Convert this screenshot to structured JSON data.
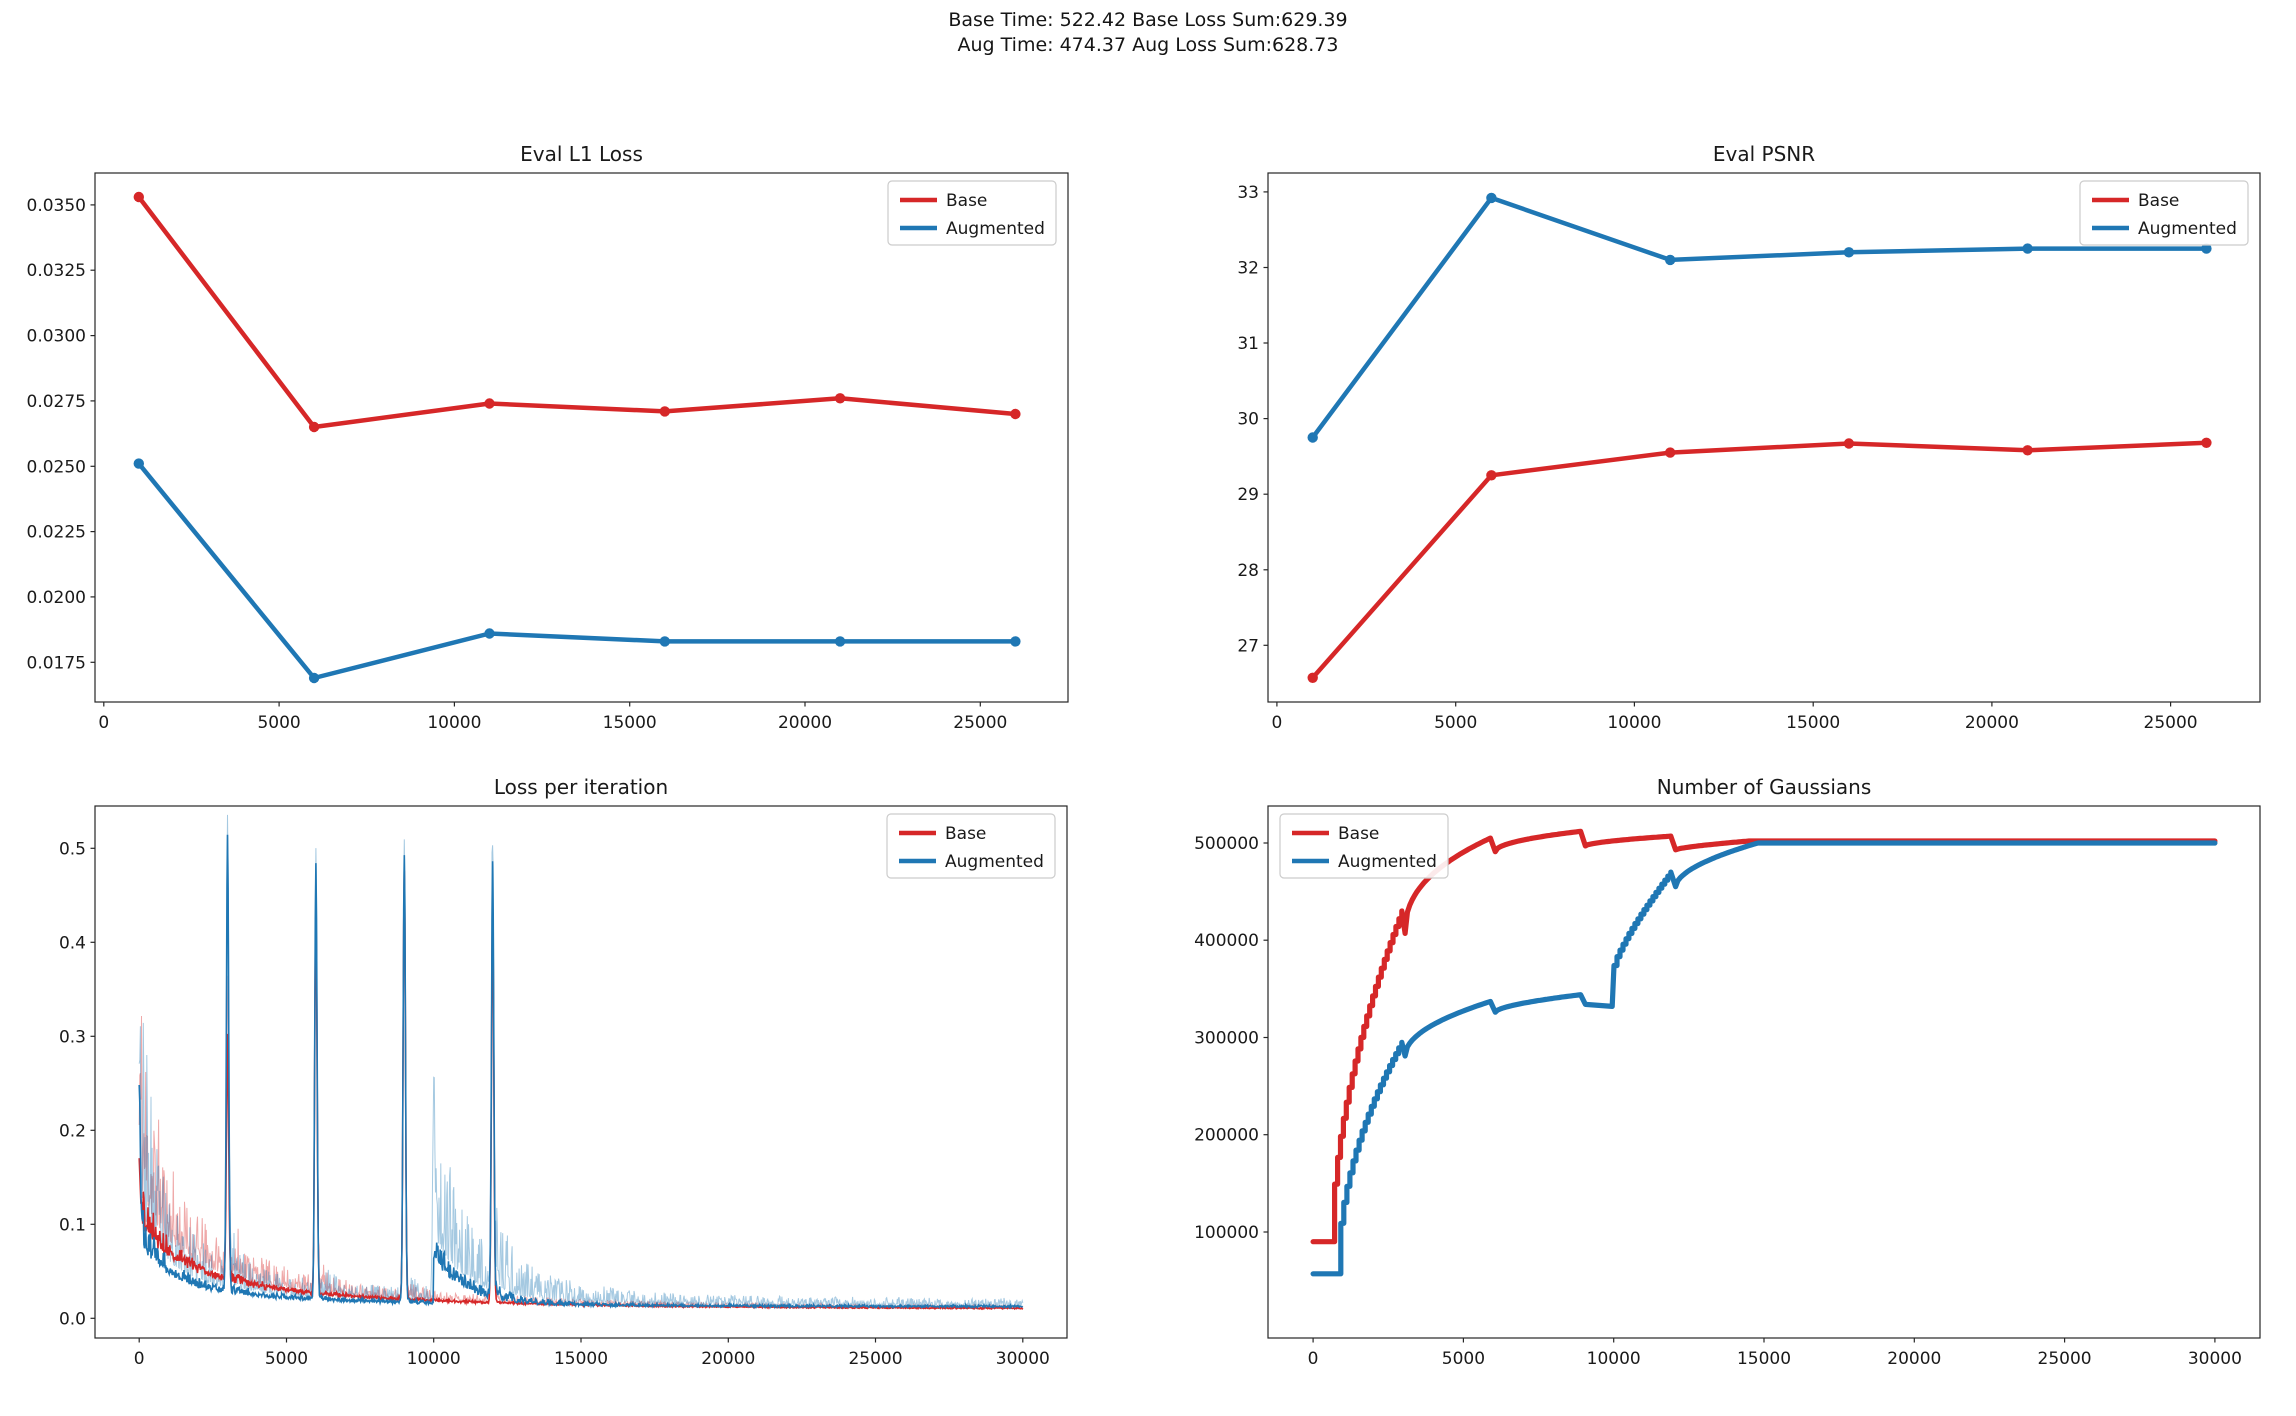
{
  "suptitle": {
    "line1": "Base Time: 522.42 Base Loss Sum:629.39",
    "line2": "Aug Time: 474.37 Aug Loss Sum:628.73"
  },
  "colors": {
    "base": "#d62728",
    "augmented": "#1f77b4",
    "base_light": "rgba(214,39,40,0.40)",
    "augmented_light": "rgba(31,119,180,0.40)",
    "axis": "#262626",
    "legend_border": "#cccccc"
  },
  "legend_labels": [
    "Base",
    "Augmented"
  ],
  "chart_data": [
    {
      "id": "eval-l1-loss",
      "type": "line",
      "title": "Eval L1 Loss",
      "x": [
        1000,
        6000,
        11000,
        16000,
        21000,
        26000
      ],
      "series": [
        {
          "name": "Base",
          "color": "base",
          "values": [
            0.0353,
            0.0265,
            0.0274,
            0.0271,
            0.0276,
            0.027
          ]
        },
        {
          "name": "Augmented",
          "color": "augmented",
          "values": [
            0.0251,
            0.0169,
            0.0186,
            0.0183,
            0.0183,
            0.0183
          ]
        }
      ],
      "xlim": [
        -250,
        27500
      ],
      "ylim": [
        0.01598,
        0.03622
      ],
      "xticks": [
        0,
        5000,
        10000,
        15000,
        20000,
        25000
      ],
      "xtick_labels": [
        "0",
        "5000",
        "10000",
        "15000",
        "20000",
        "25000"
      ],
      "yticks": [
        0.0175,
        0.02,
        0.0225,
        0.025,
        0.0275,
        0.03,
        0.0325,
        0.035
      ],
      "ytick_labels": [
        "0.0175",
        "0.0200",
        "0.0225",
        "0.0250",
        "0.0275",
        "0.0300",
        "0.0325",
        "0.0350"
      ],
      "legend": {
        "position": "upper right",
        "labels": [
          "Base",
          "Augmented"
        ]
      },
      "markers": true,
      "grid": false
    },
    {
      "id": "eval-psnr",
      "type": "line",
      "title": "Eval PSNR",
      "x": [
        1000,
        6000,
        11000,
        16000,
        21000,
        26000
      ],
      "series": [
        {
          "name": "Base",
          "color": "base",
          "values": [
            26.57,
            29.25,
            29.55,
            29.67,
            29.58,
            29.68
          ]
        },
        {
          "name": "Augmented",
          "color": "augmented",
          "values": [
            29.75,
            32.92,
            32.1,
            32.2,
            32.25,
            32.25
          ]
        }
      ],
      "xlim": [
        -250,
        27500
      ],
      "ylim": [
        26.25,
        33.25
      ],
      "xticks": [
        0,
        5000,
        10000,
        15000,
        20000,
        25000
      ],
      "xtick_labels": [
        "0",
        "5000",
        "10000",
        "15000",
        "20000",
        "25000"
      ],
      "yticks": [
        27,
        28,
        29,
        30,
        31,
        32,
        33
      ],
      "ytick_labels": [
        "27",
        "28",
        "29",
        "30",
        "31",
        "32",
        "33"
      ],
      "legend": {
        "position": "upper right",
        "labels": [
          "Base",
          "Augmented"
        ]
      },
      "markers": true,
      "grid": false
    },
    {
      "id": "loss-per-iteration",
      "type": "noisy-line",
      "title": "Loss per iteration",
      "xlim": [
        -1500,
        31500
      ],
      "ylim": [
        -0.021,
        0.545
      ],
      "x_range": [
        0,
        30000
      ],
      "xticks": [
        0,
        5000,
        10000,
        15000,
        20000,
        25000,
        30000
      ],
      "xtick_labels": [
        "0",
        "5000",
        "10000",
        "15000",
        "20000",
        "25000",
        "30000"
      ],
      "yticks": [
        0.0,
        0.1,
        0.2,
        0.3,
        0.4,
        0.5
      ],
      "ytick_labels": [
        "0.0",
        "0.1",
        "0.2",
        "0.3",
        "0.4",
        "0.5"
      ],
      "legend": {
        "position": "upper right",
        "labels": [
          "Base",
          "Augmented"
        ]
      },
      "grid": false,
      "series": [
        {
          "name": "Base",
          "color": "base",
          "light_color": "base_light",
          "envelope": {
            "end": 0.01,
            "a1": 0.055,
            "t1": 1500,
            "a2": 0.035,
            "t2": 7000
          },
          "noise": {
            "floor": 0.25,
            "decay": 0.8
          },
          "spikes": {
            "x": [
              0,
              3000,
              6000,
              9000,
              12000
            ],
            "peaks": [
              0.16,
              0.305,
              0.45,
              0.49,
              0.45
            ]
          }
        },
        {
          "name": "Augmented",
          "color": "augmented",
          "light_color": "augmented_light",
          "envelope": {
            "end": 0.012,
            "a1": 0.05,
            "t1": 1100,
            "a2": 0.02,
            "t2": 6000,
            "bump_x": 10000,
            "bump_a": 0.05,
            "bump_t": 1000
          },
          "noise": {
            "floor": 0.55,
            "decay": 0.7,
            "bump_x": 10000,
            "bump_a": 0.06,
            "bump_t": 2500
          },
          "spikes": {
            "x": [
              0,
              3000,
              6000,
              9000,
              12000
            ],
            "peaks": [
              0.25,
              0.53,
              0.497,
              0.507,
              0.495
            ]
          },
          "light_spikes": {
            "x": [
              10000
            ],
            "peaks": [
              0.22
            ]
          }
        }
      ]
    },
    {
      "id": "number-of-gaussians",
      "type": "step-line",
      "title": "Number of Gaussians",
      "xlim": [
        -1500,
        31500
      ],
      "ylim": [
        -9000,
        538000
      ],
      "xticks": [
        0,
        5000,
        10000,
        15000,
        20000,
        25000,
        30000
      ],
      "xtick_labels": [
        "0",
        "5000",
        "10000",
        "15000",
        "20000",
        "25000",
        "30000"
      ],
      "yticks": [
        100000,
        200000,
        300000,
        400000,
        500000
      ],
      "ytick_labels": [
        "100000",
        "200000",
        "300000",
        "400000",
        "500000"
      ],
      "legend": {
        "position": "upper left",
        "labels": [
          "Base",
          "Augmented"
        ]
      },
      "grid": false,
      "series": [
        {
          "name": "Base",
          "color": "base",
          "start": [
            0,
            90000
          ],
          "segments": [
            {
              "mode": "line",
              "x": 620,
              "y": 90000
            },
            {
              "mode": "stairs",
              "x": 2950,
              "y": 430000,
              "p": 0.55,
              "steps": 24
            },
            {
              "mode": "line",
              "x": 3060,
              "y": 407000
            },
            {
              "mode": "curve",
              "x": 5900,
              "y": 505000,
              "p": 0.42
            },
            {
              "mode": "line",
              "x": 6060,
              "y": 491000
            },
            {
              "mode": "curve",
              "x": 8900,
              "y": 512000,
              "p": 0.5
            },
            {
              "mode": "line",
              "x": 9060,
              "y": 497000
            },
            {
              "mode": "curve",
              "x": 11900,
              "y": 507000,
              "p": 0.6
            },
            {
              "mode": "line",
              "x": 12060,
              "y": 493000
            },
            {
              "mode": "curve",
              "x": 14500,
              "y": 502000,
              "p": 0.7
            },
            {
              "mode": "line",
              "x": 30000,
              "y": 502000
            }
          ]
        },
        {
          "name": "Augmented",
          "color": "augmented",
          "start": [
            0,
            57000
          ],
          "segments": [
            {
              "mode": "line",
              "x": 820,
              "y": 57000
            },
            {
              "mode": "stairs",
              "x": 2950,
              "y": 295000,
              "p": 0.5,
              "steps": 21
            },
            {
              "mode": "line",
              "x": 3060,
              "y": 281000
            },
            {
              "mode": "curve",
              "x": 5900,
              "y": 337000,
              "p": 0.5
            },
            {
              "mode": "line",
              "x": 6060,
              "y": 326000
            },
            {
              "mode": "curve",
              "x": 8900,
              "y": 344000,
              "p": 0.6
            },
            {
              "mode": "line",
              "x": 9060,
              "y": 334000
            },
            {
              "mode": "line",
              "x": 9950,
              "y": 332000
            },
            {
              "mode": "line",
              "x": 10010,
              "y": 374000
            },
            {
              "mode": "stairs",
              "x": 11900,
              "y": 470000,
              "p": 0.8,
              "steps": 19
            },
            {
              "mode": "line",
              "x": 12060,
              "y": 455000
            },
            {
              "mode": "curve",
              "x": 14800,
              "y": 500000,
              "p": 0.55
            },
            {
              "mode": "line",
              "x": 30000,
              "y": 500000
            }
          ]
        }
      ]
    }
  ]
}
